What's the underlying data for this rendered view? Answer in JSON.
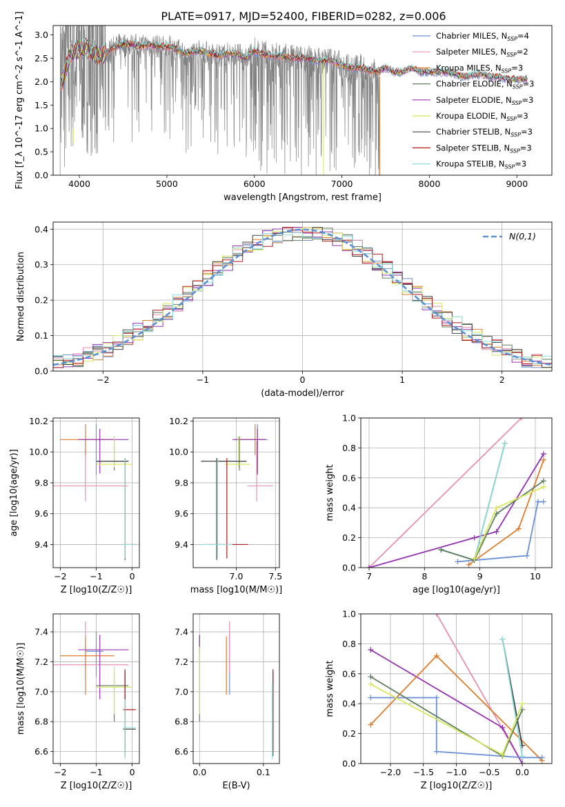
{
  "figure_title": "PLATE=0917, MJD=52400, FIBERID=0282, z=0.006",
  "colors": {
    "Chabrier MILES": "#6b8fd6",
    "Salpeter MILES": "#e88fb0",
    "Kroupa MILES": "#e07b2a",
    "Chabrier ELODIE": "#5e7f5e",
    "Salpeter ELODIE": "#9430b0",
    "Kroupa ELODIE": "#d8e85a",
    "Chabrier STELIB": "#404040",
    "Salpeter STELIB": "#b01818",
    "Kroupa STELIB": "#8fdcdc",
    "data": "#808080",
    "gaussian": "#5b8fd6"
  },
  "chart_data": [
    {
      "id": "spectrum",
      "type": "line",
      "title": "PLATE=0917, MJD=52400, FIBERID=0282, z=0.006",
      "xlabel": "wavelength [Angstrom, rest frame]",
      "ylabel": "Flux [f_λ 10^-17 erg cm^-2 s^-1 A^-1]",
      "xlim": [
        3700,
        9400
      ],
      "ylim": [
        0,
        3.2
      ],
      "xticks": [
        4000,
        5000,
        6000,
        7000,
        8000,
        9000
      ],
      "yticks": [
        0.0,
        0.5,
        1.0,
        1.5,
        2.0,
        2.5,
        3.0
      ],
      "legend_position": "top-right",
      "legend": [
        "Chabrier MILES, N_SSP=4",
        "Salpeter MILES, N_SSP=2",
        "Kroupa MILES, N_SSP=3",
        "Chabrier ELODIE, N_SSP=3",
        "Salpeter ELODIE, N_SSP=3",
        "Kroupa ELODIE, N_SSP=3",
        "Chabrier STELIB, N_SSP=3",
        "Salpeter STELIB, N_SSP=3",
        "Kroupa STELIB, N_SSP=3"
      ],
      "model_continuum": {
        "x": [
          3800,
          3900,
          4000,
          4100,
          4200,
          4300,
          4400,
          4500,
          4600,
          4700,
          4800,
          4900,
          5000,
          5100,
          5200,
          5300,
          5400,
          5500,
          5600,
          5700,
          5800,
          5900,
          6000,
          6100,
          6200,
          6300,
          6400,
          6500,
          6600,
          6700,
          6800,
          6900,
          7000,
          7100,
          7200,
          7300,
          7400,
          7500,
          7600,
          7700,
          7800,
          7900,
          8000,
          8100,
          8200,
          8300,
          8400,
          8500,
          8600,
          8700,
          8800,
          8900,
          9000,
          9100
        ],
        "y": [
          2.0,
          2.6,
          2.7,
          2.7,
          2.55,
          2.6,
          2.75,
          2.8,
          2.8,
          2.75,
          2.8,
          2.75,
          2.75,
          2.7,
          2.6,
          2.65,
          2.65,
          2.6,
          2.55,
          2.6,
          2.6,
          2.5,
          2.65,
          2.6,
          2.55,
          2.55,
          2.5,
          2.5,
          2.5,
          2.45,
          2.45,
          2.45,
          2.35,
          2.3,
          2.3,
          2.25,
          2.2,
          2.3,
          2.2,
          2.2,
          2.3,
          2.2,
          2.2,
          2.2,
          2.2,
          2.15,
          2.1,
          2.15,
          2.15,
          2.1,
          2.1,
          2.05,
          2.05,
          2.05
        ]
      },
      "data_range": [
        3780,
        7430
      ]
    },
    {
      "id": "residuals",
      "type": "area",
      "xlabel": "(data-model)/error",
      "ylabel": "Normed distribution",
      "xlim": [
        -2.5,
        2.5
      ],
      "ylim": [
        0,
        0.42
      ],
      "xticks": [
        -2,
        -1,
        0,
        1,
        2
      ],
      "yticks": [
        0.0,
        0.1,
        0.2,
        0.3,
        0.4
      ],
      "grid": true,
      "legend_position": "top-right",
      "gaussian_label": "N(0,1)",
      "bin_width": 0.1,
      "bin_start": -2.5
    },
    {
      "id": "age_vs_Z",
      "type": "scatter",
      "xlabel": "Z [log10(Z/Z☉)]",
      "ylabel": "age  [log10(age/yr)]",
      "xlim": [
        -2.2,
        0.2
      ],
      "ylim": [
        9.25,
        10.22
      ],
      "xticks": [
        -2,
        -1,
        0
      ],
      "yticks": [
        9.4,
        9.6,
        9.8,
        10.0,
        10.2
      ],
      "grid": true,
      "points": [
        {
          "m": "Chabrier MILES",
          "x": -1.0,
          "y": 10.08,
          "xe": [
            -1.3,
            -0.8
          ],
          "ye": [
            9.85,
            10.18
          ]
        },
        {
          "m": "Salpeter MILES",
          "x": -1.3,
          "y": 9.78,
          "xe": [
            -2.2,
            -0.1
          ],
          "ye": [
            9.68,
            10.07
          ]
        },
        {
          "m": "Kroupa MILES",
          "x": -1.3,
          "y": 10.08,
          "xe": [
            -2.0,
            -0.5
          ],
          "ye": [
            9.98,
            10.18
          ]
        },
        {
          "m": "Chabrier ELODIE",
          "x": -0.5,
          "y": 9.94,
          "xe": [
            -1.0,
            -0.1
          ],
          "ye": [
            9.88,
            10.1
          ]
        },
        {
          "m": "Salpeter ELODIE",
          "x": -0.9,
          "y": 10.08,
          "xe": [
            -1.5,
            -0.1
          ],
          "ye": [
            9.86,
            10.15
          ]
        },
        {
          "m": "Kroupa ELODIE",
          "x": -0.5,
          "y": 9.92,
          "xe": [
            -1.0,
            0.0
          ],
          "ye": [
            9.9,
            10.1
          ]
        },
        {
          "m": "Chabrier STELIB",
          "x": -0.2,
          "y": 9.94,
          "xe": [
            -1.0,
            -0.1
          ],
          "ye": [
            9.3,
            9.96
          ]
        },
        {
          "m": "Salpeter STELIB",
          "x": -0.2,
          "y": 9.4,
          "xe": [
            -0.25,
            0.1
          ],
          "ye": [
            9.31,
            9.96
          ]
        },
        {
          "m": "Kroupa STELIB",
          "x": -0.2,
          "y": 9.4,
          "xe": [
            -0.25,
            0.1
          ],
          "ye": [
            9.31,
            9.96
          ]
        }
      ]
    },
    {
      "id": "age_vs_mass",
      "type": "scatter",
      "xlabel": "mass [log10(M/M☉)]",
      "ylabel": "",
      "xlim": [
        6.45,
        7.55
      ],
      "ylim": [
        9.25,
        10.22
      ],
      "xticks": [
        7.0,
        7.5
      ],
      "yticks": [
        9.4,
        9.6,
        9.8,
        10.0,
        10.2
      ],
      "grid": true,
      "points": [
        {
          "m": "Chabrier MILES",
          "x": 7.27,
          "y": 10.08,
          "xe": [
            7.1,
            7.4
          ],
          "ye": [
            9.85,
            10.18
          ]
        },
        {
          "m": "Salpeter MILES",
          "x": 7.26,
          "y": 9.78,
          "xe": [
            7.14,
            7.47
          ],
          "ye": [
            9.68,
            10.07
          ]
        },
        {
          "m": "Kroupa MILES",
          "x": 7.24,
          "y": 10.08,
          "xe": [
            6.99,
            7.37
          ],
          "ye": [
            9.98,
            10.18
          ]
        },
        {
          "m": "Chabrier ELODIE",
          "x": 7.04,
          "y": 9.94,
          "xe": [
            6.8,
            7.13
          ],
          "ye": [
            9.88,
            10.1
          ]
        },
        {
          "m": "Salpeter ELODIE",
          "x": 7.27,
          "y": 10.08,
          "xe": [
            6.95,
            7.38
          ],
          "ye": [
            9.86,
            10.15
          ]
        },
        {
          "m": "Kroupa ELODIE",
          "x": 7.03,
          "y": 9.92,
          "xe": [
            6.85,
            7.17
          ],
          "ye": [
            9.9,
            10.1
          ]
        },
        {
          "m": "Chabrier STELIB",
          "x": 6.75,
          "y": 9.94,
          "xe": [
            6.55,
            7.13
          ],
          "ye": [
            9.3,
            9.96
          ]
        },
        {
          "m": "Salpeter STELIB",
          "x": 6.88,
          "y": 9.4,
          "xe": [
            6.6,
            7.15
          ],
          "ye": [
            9.31,
            9.96
          ]
        },
        {
          "m": "Kroupa STELIB",
          "x": 6.76,
          "y": 9.4,
          "xe": [
            6.55,
            6.95
          ],
          "ye": [
            9.31,
            9.96
          ]
        }
      ]
    },
    {
      "id": "weight_vs_age",
      "type": "line",
      "xlabel": "age  [log10(age/yr)]",
      "ylabel": "mass weight",
      "xlim": [
        6.85,
        10.3
      ],
      "ylim": [
        0,
        1.0
      ],
      "xticks": [
        7,
        8,
        9,
        10
      ],
      "yticks": [
        0.0,
        0.2,
        0.4,
        0.6,
        0.8,
        1.0
      ],
      "grid": true,
      "series": [
        {
          "m": "Salpeter MILES",
          "x": [
            7.0,
            9.75
          ],
          "y": [
            0.0,
            1.0
          ]
        },
        {
          "m": "Salpeter ELODIE",
          "x": [
            7.0,
            8.9,
            9.3,
            10.15
          ],
          "y": [
            0.0,
            0.2,
            0.24,
            0.76
          ]
        },
        {
          "m": "Kroupa MILES",
          "x": [
            8.8,
            9.7,
            10.15
          ],
          "y": [
            0.02,
            0.26,
            0.72
          ]
        },
        {
          "m": "Chabrier MILES",
          "x": [
            8.6,
            9.85,
            10.05,
            10.15
          ],
          "y": [
            0.04,
            0.08,
            0.44,
            0.44
          ]
        },
        {
          "m": "Chabrier STELIB",
          "x": [
            8.3,
            8.9,
            9.45
          ],
          "y": [
            0.12,
            0.05,
            0.83
          ]
        },
        {
          "m": "Kroupa STELIB",
          "x": [
            8.3,
            8.9,
            9.45
          ],
          "y": [
            0.12,
            0.05,
            0.83
          ]
        },
        {
          "m": "Chabrier ELODIE",
          "x": [
            8.3,
            8.9,
            9.3,
            10.15
          ],
          "y": [
            0.12,
            0.05,
            0.36,
            0.58
          ]
        },
        {
          "m": "Kroupa ELODIE",
          "x": [
            8.9,
            9.3,
            10.15
          ],
          "y": [
            0.06,
            0.4,
            0.54
          ]
        }
      ]
    },
    {
      "id": "mass_vs_Z",
      "type": "scatter",
      "xlabel": "Z [log10(Z/Z☉)]",
      "ylabel": "mass [log10(M/M☉)]",
      "xlim": [
        -2.2,
        0.2
      ],
      "ylim": [
        6.52,
        7.52
      ],
      "xticks": [
        -2,
        -1,
        0
      ],
      "yticks": [
        6.6,
        6.8,
        7.0,
        7.2,
        7.4
      ],
      "grid": true,
      "points": [
        {
          "m": "Chabrier MILES",
          "x": -1.0,
          "y": 7.27,
          "xe": [
            -1.3,
            -0.8
          ],
          "ye": [
            7.1,
            7.4
          ]
        },
        {
          "m": "Salpeter MILES",
          "x": -1.3,
          "y": 7.18,
          "xe": [
            -2.2,
            -0.1
          ],
          "ye": [
            7.12,
            7.47
          ]
        },
        {
          "m": "Kroupa MILES",
          "x": -1.3,
          "y": 7.24,
          "xe": [
            -2.0,
            -0.5
          ],
          "ye": [
            6.98,
            7.37
          ]
        },
        {
          "m": "Chabrier ELODIE",
          "x": -0.5,
          "y": 7.04,
          "xe": [
            -1.0,
            -0.1
          ],
          "ye": [
            6.8,
            7.13
          ]
        },
        {
          "m": "Salpeter ELODIE",
          "x": -0.9,
          "y": 7.28,
          "xe": [
            -1.5,
            -0.1
          ],
          "ye": [
            6.95,
            7.38
          ]
        },
        {
          "m": "Kroupa ELODIE",
          "x": -0.5,
          "y": 7.03,
          "xe": [
            -1.0,
            0.0
          ],
          "ye": [
            6.85,
            7.17
          ]
        },
        {
          "m": "Chabrier STELIB",
          "x": -0.2,
          "y": 6.75,
          "xe": [
            -0.25,
            0.1
          ],
          "ye": [
            6.57,
            7.13
          ]
        },
        {
          "m": "Salpeter STELIB",
          "x": -0.2,
          "y": 6.88,
          "xe": [
            -0.25,
            0.1
          ],
          "ye": [
            6.6,
            7.15
          ]
        },
        {
          "m": "Kroupa STELIB",
          "x": -0.2,
          "y": 6.76,
          "xe": [
            -0.25,
            0.1
          ],
          "ye": [
            6.55,
            6.95
          ]
        }
      ]
    },
    {
      "id": "mass_vs_ebv",
      "type": "scatter",
      "xlabel": "E(B-V)",
      "ylabel": "",
      "xlim": [
        -0.01,
        0.125
      ],
      "ylim": [
        6.52,
        7.52
      ],
      "xticks": [
        0.0,
        0.1
      ],
      "yticks": [
        6.6,
        6.8,
        7.0,
        7.2,
        7.4
      ],
      "grid": true,
      "points": [
        {
          "m": "Chabrier MILES",
          "x": 0.047,
          "y": 7.27,
          "ye": [
            6.98,
            7.4
          ]
        },
        {
          "m": "Salpeter MILES",
          "x": 0.047,
          "y": 7.18,
          "ye": [
            7.12,
            7.47
          ]
        },
        {
          "m": "Kroupa MILES",
          "x": 0.042,
          "y": 7.24,
          "ye": [
            6.98,
            7.37
          ]
        },
        {
          "m": "Chabrier ELODIE",
          "x": 0.0,
          "y": 7.04,
          "ye": [
            6.8,
            7.37
          ]
        },
        {
          "m": "Salpeter ELODIE",
          "x": 0.0,
          "y": 7.28,
          "ye": [
            7.25,
            7.38
          ]
        },
        {
          "m": "Kroupa ELODIE",
          "x": 0.0,
          "y": 7.03,
          "ye": [
            6.85,
            7.3
          ]
        },
        {
          "m": "Chabrier STELIB",
          "x": 0.115,
          "y": 6.75,
          "ye": [
            6.57,
            7.13
          ]
        },
        {
          "m": "Salpeter STELIB",
          "x": 0.115,
          "y": 6.88,
          "ye": [
            6.6,
            7.15
          ]
        },
        {
          "m": "Kroupa STELIB",
          "x": 0.114,
          "y": 6.76,
          "ye": [
            6.55,
            7.05
          ]
        }
      ]
    },
    {
      "id": "weight_vs_Z",
      "type": "line",
      "xlabel": "Z [log10(Z/Z☉)]",
      "ylabel": "mass weight",
      "xlim": [
        -2.45,
        0.45
      ],
      "ylim": [
        0,
        1.0
      ],
      "xticks": [
        -2.0,
        -1.5,
        -1.0,
        -0.5,
        0.0
      ],
      "yticks": [
        0.0,
        0.2,
        0.4,
        0.6,
        0.8,
        1.0
      ],
      "grid": true,
      "series": [
        {
          "m": "Salpeter MILES",
          "x": [
            -1.3,
            0.0
          ],
          "y": [
            1.0,
            0.0
          ]
        },
        {
          "m": "Salpeter ELODIE",
          "x": [
            -2.3,
            -0.3,
            0.0
          ],
          "y": [
            0.76,
            0.24,
            0.0
          ]
        },
        {
          "m": "Kroupa MILES",
          "x": [
            -2.3,
            -1.3,
            0.3
          ],
          "y": [
            0.26,
            0.72,
            0.02
          ]
        },
        {
          "m": "Chabrier MILES",
          "x": [
            -2.3,
            -1.3,
            -1.3,
            0.0,
            0.3
          ],
          "y": [
            0.44,
            0.44,
            0.08,
            0.04,
            0.04
          ]
        },
        {
          "m": "Chabrier STELIB",
          "x": [
            -0.3,
            0.0
          ],
          "y": [
            0.83,
            0.12
          ]
        },
        {
          "m": "Kroupa STELIB",
          "x": [
            -0.3,
            0.0
          ],
          "y": [
            0.83,
            0.05
          ]
        },
        {
          "m": "Chabrier ELODIE",
          "x": [
            -2.3,
            -0.3,
            0.0
          ],
          "y": [
            0.58,
            0.05,
            0.36
          ]
        },
        {
          "m": "Kroupa ELODIE",
          "x": [
            -2.3,
            -0.3,
            0.0
          ],
          "y": [
            0.53,
            0.06,
            0.4
          ]
        }
      ]
    }
  ]
}
